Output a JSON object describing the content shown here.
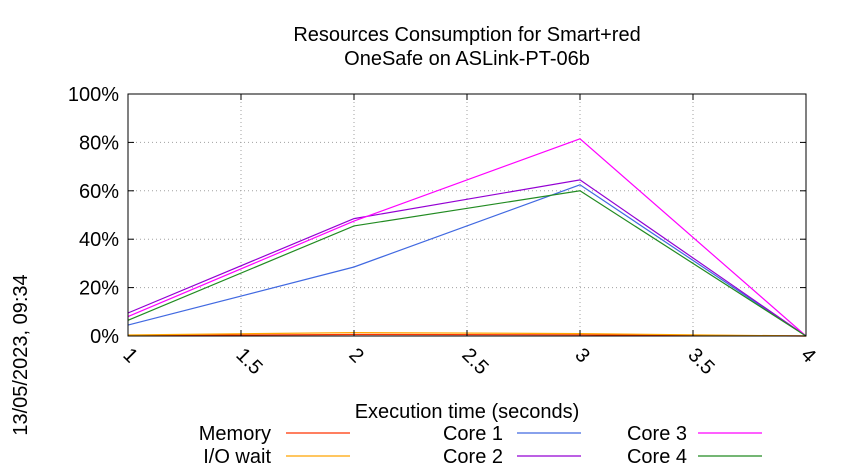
{
  "chart_data": {
    "type": "line",
    "title_line1": "Resources Consumption for Smart+red",
    "title_line2": "OneSafe on ASLink-PT-06b",
    "xlabel": "Execution time (seconds)",
    "ylabel": "",
    "side_label": "13/05/2023, 09:34",
    "xlim": [
      1,
      4
    ],
    "ylim": [
      0,
      100
    ],
    "x_ticks": [
      1,
      1.5,
      2,
      2.5,
      3,
      3.5,
      4
    ],
    "x_tick_labels": [
      "1",
      "1.5",
      "2",
      "2.5",
      "3",
      "3.5",
      "4"
    ],
    "y_ticks": [
      0,
      20,
      40,
      60,
      80,
      100
    ],
    "y_tick_labels": [
      "0%",
      "20%",
      "40%",
      "60%",
      "80%",
      "100%"
    ],
    "grid": true,
    "legend_position": "bottom",
    "series": [
      {
        "name": "Memory",
        "color": "#ff3300",
        "x": [
          1,
          2,
          3,
          4
        ],
        "y": [
          0.2,
          0.6,
          0.5,
          0
        ]
      },
      {
        "name": "I/O wait",
        "color": "#ffa500",
        "x": [
          1,
          2,
          3,
          4
        ],
        "y": [
          0.4,
          1.4,
          1.0,
          0
        ]
      },
      {
        "name": "Core 1",
        "color": "#4169e1",
        "x": [
          1,
          2,
          3,
          4
        ],
        "y": [
          4.5,
          28.5,
          62.5,
          0
        ]
      },
      {
        "name": "Core 2",
        "color": "#9400d3",
        "x": [
          1,
          2,
          3,
          4
        ],
        "y": [
          9.5,
          48.5,
          64.5,
          0
        ]
      },
      {
        "name": "Core 3",
        "color": "#ff00ff",
        "x": [
          1,
          2,
          3,
          4
        ],
        "y": [
          8.0,
          47.5,
          81.5,
          0
        ]
      },
      {
        "name": "Core 4",
        "color": "#228b22",
        "x": [
          1,
          2,
          3,
          4
        ],
        "y": [
          6.5,
          45.5,
          60.0,
          0
        ]
      }
    ]
  }
}
